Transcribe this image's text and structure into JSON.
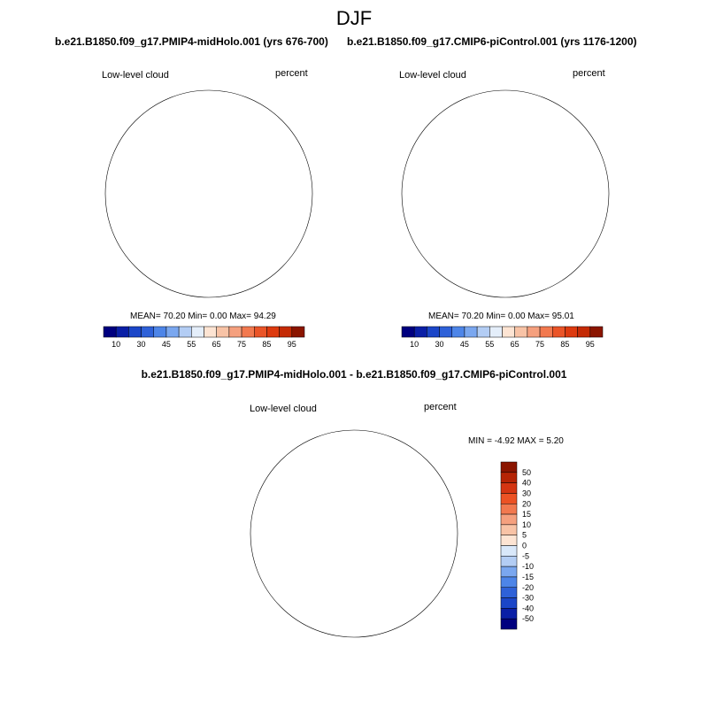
{
  "season": "DJF",
  "variable": "Low-level cloud",
  "units": "percent",
  "panels": {
    "left": {
      "title": "b.e21.B1850.f09_g17.PMIP4-midHolo.001 (yrs 676-700)",
      "stats": "MEAN=  70.20  Min=   0.00  Max=  94.29",
      "mean": 70.2,
      "min": 0.0,
      "max": 94.29
    },
    "right": {
      "title": "b.e21.B1850.f09_g17.CMIP6-piControl.001 (yrs 1176-1200)",
      "stats": "MEAN=  70.20  Min=   0.00  Max=  95.01",
      "mean": 70.2,
      "min": 0.0,
      "max": 95.01
    },
    "diff": {
      "title": "b.e21.B1850.f09_g17.PMIP4-midHolo.001 - b.e21.B1850.f09_g17.CMIP6-piControl.001",
      "stats": "MIN =  -4.92 MAX =   5.20",
      "min": -4.92,
      "max": 5.2
    }
  },
  "colorbar_abs": {
    "labels": [
      "10",
      "30",
      "45",
      "55",
      "65",
      "75",
      "85",
      "95"
    ],
    "colors": [
      "#00007f",
      "#0a1fa6",
      "#1b46c8",
      "#2e61d8",
      "#4d85e8",
      "#7aa7ef",
      "#b3cdf4",
      "#e4eefa",
      "#fde4d3",
      "#f8c3a6",
      "#f5a07e",
      "#f2794f",
      "#ea5427",
      "#dd3a0f",
      "#c42a05",
      "#8b1500"
    ]
  },
  "colorbar_diff": {
    "labels": [
      "50",
      "40",
      "30",
      "20",
      "15",
      "10",
      "5",
      "0",
      "-5",
      "-10",
      "-15",
      "-20",
      "-30",
      "-40",
      "-50"
    ],
    "colors": [
      "#8b1500",
      "#b52405",
      "#d43512",
      "#ec5224",
      "#f2794f",
      "#f5a07e",
      "#f8c3a6",
      "#fde4d3",
      "#d9e8fa",
      "#b3cdf4",
      "#7aa7ef",
      "#4d85e8",
      "#2e61d8",
      "#1b46c8",
      "#0a1fa6",
      "#00007f"
    ]
  }
}
